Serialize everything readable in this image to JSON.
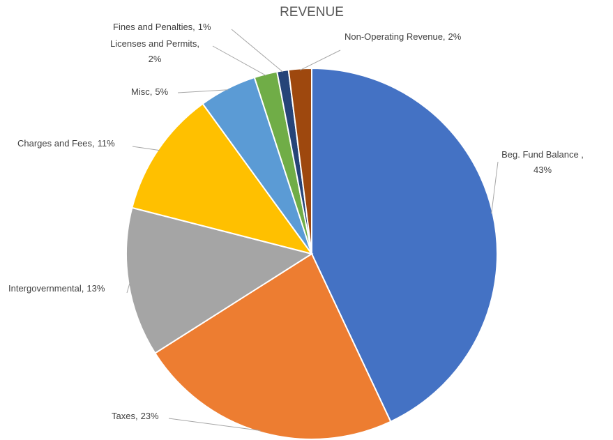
{
  "chart_data": {
    "type": "pie",
    "title": "REVENUE",
    "categories": [
      "Beg. Fund Balance ,",
      "Taxes,",
      "Intergovernmental,",
      "Charges and Fees,",
      "Misc,",
      "Licenses and Permits,",
      "Fines and Penalties,",
      "Non-Operating Revenue,"
    ],
    "values": [
      43,
      23,
      13,
      11,
      5,
      2,
      1,
      2
    ],
    "value_labels": [
      "43%",
      "23%",
      "13%",
      "11%",
      "5%",
      "2%",
      "1%",
      "2%"
    ],
    "colors": [
      "#4472c4",
      "#ed7d31",
      "#a5a5a5",
      "#ffc000",
      "#5b9bd5",
      "#70ad47",
      "#264478",
      "#9e480e"
    ]
  }
}
